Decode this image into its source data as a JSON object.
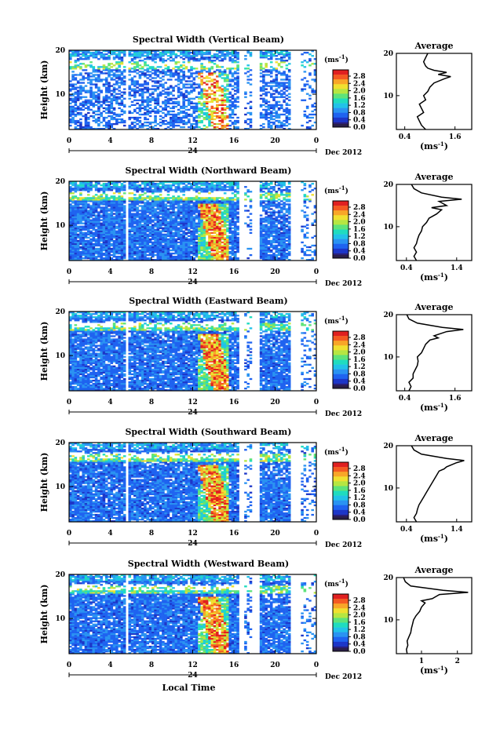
{
  "chart_data": [
    {
      "type": "heatmap",
      "title": "Spectral Width (Vertical Beam)",
      "ylabel": "Height (km)",
      "yticks": [
        "20",
        "10"
      ],
      "xticks": [
        "0",
        "4",
        "8",
        "12",
        "16",
        "20",
        "0"
      ],
      "xlim": [
        0,
        24
      ],
      "ylim": [
        2,
        20
      ],
      "date_mark": "24",
      "date_label": "Dec 2012",
      "colorbar": {
        "unit": "(ms",
        "unit_exp": "-1",
        "unit_close": ")",
        "ticks": [
          "2.8",
          "2.4",
          "2.0",
          "1.6",
          "1.2",
          "0.8",
          "0.4",
          "0.0"
        ]
      },
      "average": {
        "title": "Average",
        "xticks": [
          "0.4",
          "1.6"
        ],
        "xlim": [
          0.2,
          2.0
        ],
        "yticks": [
          "20",
          "10"
        ],
        "xlabel": "(ms",
        "xlabel_exp": "-1",
        "xlabel_close": ")",
        "profile": [
          [
            2,
            0.9
          ],
          [
            3,
            0.8
          ],
          [
            4,
            0.75
          ],
          [
            5,
            0.7
          ],
          [
            6,
            0.85
          ],
          [
            7,
            0.8
          ],
          [
            8,
            0.75
          ],
          [
            9,
            0.9
          ],
          [
            10,
            0.85
          ],
          [
            11,
            0.95
          ],
          [
            12,
            1.0
          ],
          [
            13,
            1.1
          ],
          [
            14,
            1.35
          ],
          [
            14.5,
            1.5
          ],
          [
            15,
            1.2
          ],
          [
            15.5,
            1.4
          ],
          [
            16,
            1.1
          ],
          [
            16.5,
            0.95
          ],
          [
            17,
            0.9
          ],
          [
            18,
            0.85
          ],
          [
            19,
            0.9
          ],
          [
            20,
            0.95
          ]
        ]
      }
    },
    {
      "type": "heatmap",
      "title": "Spectral Width (Northward Beam)",
      "ylabel": "Height (km)",
      "yticks": [
        "20",
        "10"
      ],
      "xticks": [
        "0",
        "4",
        "8",
        "12",
        "16",
        "20",
        "0"
      ],
      "xlim": [
        0,
        24
      ],
      "ylim": [
        2,
        20
      ],
      "date_mark": "24",
      "date_label": "Dec 2012",
      "colorbar": {
        "unit": "(ms",
        "unit_exp": "-1",
        "unit_close": ")",
        "ticks": [
          "2.8",
          "2.4",
          "2.0",
          "1.6",
          "1.2",
          "0.8",
          "0.4",
          "0.0"
        ]
      },
      "average": {
        "title": "Average",
        "xticks": [
          "0.4",
          "1.4"
        ],
        "xlim": [
          0.2,
          1.7
        ],
        "yticks": [
          "20",
          "10"
        ],
        "xlabel": "(ms",
        "xlabel_exp": "-1",
        "xlabel_close": ")",
        "profile": [
          [
            2,
            0.6
          ],
          [
            3,
            0.55
          ],
          [
            4,
            0.6
          ],
          [
            5,
            0.55
          ],
          [
            6,
            0.6
          ],
          [
            7,
            0.62
          ],
          [
            8,
            0.65
          ],
          [
            9,
            0.7
          ],
          [
            10,
            0.72
          ],
          [
            11,
            0.8
          ],
          [
            12,
            0.85
          ],
          [
            13,
            1.0
          ],
          [
            14,
            1.1
          ],
          [
            14.5,
            0.9
          ],
          [
            15,
            1.2
          ],
          [
            16,
            1.05
          ],
          [
            16.5,
            1.5
          ],
          [
            17,
            1.1
          ],
          [
            18,
            0.7
          ],
          [
            19,
            0.55
          ],
          [
            20,
            0.5
          ]
        ]
      }
    },
    {
      "type": "heatmap",
      "title": "Spectral Width (Eastward Beam)",
      "ylabel": "Height (km)",
      "yticks": [
        "20",
        "10"
      ],
      "xticks": [
        "0",
        "4",
        "8",
        "12",
        "16",
        "20",
        "0"
      ],
      "xlim": [
        0,
        24
      ],
      "ylim": [
        2,
        20
      ],
      "date_mark": "24",
      "date_label": "Dec 2012",
      "colorbar": {
        "unit": "(ms",
        "unit_exp": "-1",
        "unit_close": ")",
        "ticks": [
          "2.8",
          "2.4",
          "2.0",
          "1.6",
          "1.2",
          "0.8",
          "0.4",
          "0.0"
        ]
      },
      "average": {
        "title": "Average",
        "xticks": [
          "0.4",
          "1.6"
        ],
        "xlim": [
          0.2,
          2.0
        ],
        "yticks": [
          "20",
          "10"
        ],
        "xlabel": "(ms",
        "xlabel_exp": "-1",
        "xlabel_close": ")",
        "profile": [
          [
            2,
            0.5
          ],
          [
            3,
            0.55
          ],
          [
            4,
            0.5
          ],
          [
            5,
            0.6
          ],
          [
            6,
            0.6
          ],
          [
            7,
            0.65
          ],
          [
            8,
            0.7
          ],
          [
            9,
            0.72
          ],
          [
            10,
            0.7
          ],
          [
            11,
            0.8
          ],
          [
            12,
            0.85
          ],
          [
            13,
            0.9
          ],
          [
            14,
            1.0
          ],
          [
            14.5,
            1.2
          ],
          [
            15,
            1.1
          ],
          [
            16,
            1.4
          ],
          [
            16.5,
            1.8
          ],
          [
            17,
            1.3
          ],
          [
            18,
            0.7
          ],
          [
            19,
            0.5
          ],
          [
            20,
            0.45
          ]
        ]
      }
    },
    {
      "type": "heatmap",
      "title": "Spectral Width (Southward Beam)",
      "ylabel": "Height (km)",
      "yticks": [
        "20",
        "10"
      ],
      "xticks": [
        "0",
        "4",
        "8",
        "12",
        "16",
        "20",
        "0"
      ],
      "xlim": [
        0,
        24
      ],
      "ylim": [
        2,
        20
      ],
      "date_mark": "24",
      "date_label": "Dec 2012",
      "colorbar": {
        "unit": "(ms",
        "unit_exp": "-1",
        "unit_close": ")",
        "ticks": [
          "2.8",
          "2.4",
          "2.0",
          "1.6",
          "1.2",
          "0.8",
          "0.4",
          "0.0"
        ]
      },
      "average": {
        "title": "Average",
        "xticks": [
          "0.4",
          "1.4"
        ],
        "xlim": [
          0.2,
          1.7
        ],
        "yticks": [
          "20",
          "10"
        ],
        "xlabel": "(ms",
        "xlabel_exp": "-1",
        "xlabel_close": ")",
        "profile": [
          [
            2,
            0.6
          ],
          [
            3,
            0.55
          ],
          [
            4,
            0.6
          ],
          [
            5,
            0.62
          ],
          [
            6,
            0.65
          ],
          [
            7,
            0.7
          ],
          [
            8,
            0.75
          ],
          [
            9,
            0.8
          ],
          [
            10,
            0.85
          ],
          [
            11,
            0.9
          ],
          [
            12,
            0.95
          ],
          [
            13,
            1.0
          ],
          [
            14,
            1.05
          ],
          [
            14.5,
            1.15
          ],
          [
            15,
            1.2
          ],
          [
            16,
            1.4
          ],
          [
            16.5,
            1.55
          ],
          [
            17,
            1.2
          ],
          [
            18,
            0.7
          ],
          [
            19,
            0.55
          ],
          [
            20,
            0.5
          ]
        ]
      }
    },
    {
      "type": "heatmap",
      "title": "Spectral Width (Westward Beam)",
      "ylabel": "Height (km)",
      "yticks": [
        "20",
        "10"
      ],
      "xticks": [
        "0",
        "4",
        "8",
        "12",
        "16",
        "20",
        "0"
      ],
      "xlim": [
        0,
        24
      ],
      "ylim": [
        2,
        20
      ],
      "date_mark": "24",
      "date_label": "Dec 2012",
      "xlabel": "Local Time",
      "colorbar": {
        "unit": "(ms",
        "unit_exp": "-1",
        "unit_close": ")",
        "ticks": [
          "2.8",
          "2.4",
          "2.0",
          "1.6",
          "1.2",
          "0.8",
          "0.4",
          "0.0"
        ]
      },
      "average": {
        "title": "Average",
        "xticks": [
          "1",
          "2"
        ],
        "xlim": [
          0.3,
          2.4
        ],
        "yticks": [
          "20",
          "10"
        ],
        "xlabel": "(ms",
        "xlabel_exp": "-1",
        "xlabel_close": ")",
        "profile": [
          [
            2,
            0.6
          ],
          [
            3,
            0.58
          ],
          [
            4,
            0.62
          ],
          [
            5,
            0.6
          ],
          [
            6,
            0.65
          ],
          [
            7,
            0.7
          ],
          [
            8,
            0.72
          ],
          [
            9,
            0.75
          ],
          [
            10,
            0.78
          ],
          [
            11,
            0.85
          ],
          [
            12,
            0.95
          ],
          [
            13,
            1.0
          ],
          [
            14,
            1.1
          ],
          [
            14.5,
            1.0
          ],
          [
            15,
            1.3
          ],
          [
            16,
            1.5
          ],
          [
            16.5,
            2.3
          ],
          [
            17,
            1.6
          ],
          [
            18,
            0.7
          ],
          [
            19,
            0.55
          ],
          [
            20,
            0.5
          ]
        ]
      }
    }
  ]
}
